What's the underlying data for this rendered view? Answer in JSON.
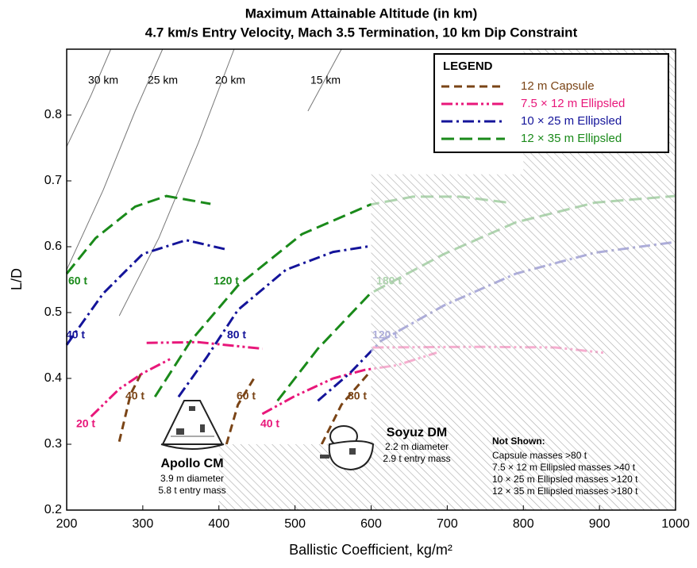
{
  "chart_data": {
    "type": "line",
    "title": "Maximum Attainable Altitude (in km)",
    "subtitle": "4.7 km/s Entry Velocity, Mach 3.5 Termination, 10 km Dip Constraint",
    "xlabel": "Ballistic Coefficient, kg/m²",
    "ylabel": "L/D",
    "xlim": [
      200,
      1000
    ],
    "ylim": [
      0.2,
      0.9
    ],
    "xticks": [
      200,
      300,
      400,
      500,
      600,
      700,
      800,
      900,
      1000
    ],
    "yticks": [
      0.2,
      0.3,
      0.4,
      0.5,
      0.6,
      0.7,
      0.8
    ],
    "legend_title": "LEGEND",
    "legend": "upper right",
    "series": [
      {
        "name": "12 m Capsule",
        "color": "#7a4416",
        "dash": "10 6",
        "curves": [
          {
            "label": "40 t",
            "x": [
              269,
              284,
              298
            ],
            "values": [
              0.304,
              0.376,
              0.408
            ]
          },
          {
            "label": "60 t",
            "x": [
              410,
              425,
              446
            ],
            "values": [
              0.3,
              0.36,
              0.4
            ]
          },
          {
            "label": "80 t",
            "x": [
              535,
              561,
              597
            ],
            "values": [
              0.3,
              0.36,
              0.408
            ]
          }
        ]
      },
      {
        "name": "7.5 × 12 m Ellipsled",
        "color": "#e8177a",
        "dash": "14 4 3 4 3 4",
        "curves": [
          {
            "label": "20 t",
            "x": [
              232,
              269,
              300,
              337
            ],
            "values": [
              0.342,
              0.384,
              0.408,
              0.43
            ]
          },
          {
            "label": null,
            "x": [
              305,
              373,
              457
            ],
            "values": [
              0.454,
              0.455,
              0.445
            ]
          },
          {
            "label": "40 t",
            "x": [
              457,
              498,
              550,
              592,
              634,
              686
            ],
            "values": [
              0.346,
              0.372,
              0.4,
              0.413,
              0.42,
              0.439
            ]
          },
          {
            "label": null,
            "x": [
              602,
              738,
              842,
              905
            ],
            "values": [
              0.447,
              0.448,
              0.447,
              0.439
            ]
          }
        ]
      },
      {
        "name": "10 × 25 m Ellipsled",
        "color": "#14149a",
        "dash": "14 5 3 5",
        "curves": [
          {
            "label": "40 t",
            "x": [
              200,
              248,
              300,
              357,
              409
            ],
            "values": [
              0.451,
              0.529,
              0.589,
              0.61,
              0.596
            ]
          },
          {
            "label": "80 t",
            "x": [
              347,
              384,
              425,
              488,
              550,
              599
            ],
            "values": [
              0.372,
              0.432,
              0.504,
              0.565,
              0.592,
              0.601
            ]
          },
          {
            "label": "120 t",
            "x": [
              530,
              572,
              613,
              696,
              790,
              894,
              999
            ],
            "values": [
              0.366,
              0.408,
              0.457,
              0.511,
              0.559,
              0.591,
              0.607
            ]
          }
        ]
      },
      {
        "name": "12 × 35 m Ellipsled",
        "color": "#1a8a1a",
        "dash": "16 7",
        "curves": [
          {
            "label": "60 t",
            "x": [
              200,
              238,
              290,
              331,
              389
            ],
            "values": [
              0.559,
              0.613,
              0.661,
              0.677,
              0.665
            ]
          },
          {
            "label": "120 t",
            "x": [
              316,
              363,
              425,
              509,
              599,
              655,
              717,
              780
            ],
            "values": [
              0.372,
              0.457,
              0.541,
              0.619,
              0.664,
              0.676,
              0.676,
              0.667
            ]
          },
          {
            "label": "180 t",
            "x": [
              477,
              530,
              599,
              696,
              790,
              894,
              999
            ],
            "values": [
              0.366,
              0.445,
              0.529,
              0.589,
              0.637,
              0.667,
              0.677
            ]
          }
        ]
      }
    ],
    "contours": [
      {
        "label": "30 km",
        "x": [
          200,
          232,
          258
        ],
        "values": [
          0.752,
          0.83,
          0.9
        ]
      },
      {
        "label": "25 km",
        "x": [
          200,
          248,
          290,
          326
        ],
        "values": [
          0.565,
          0.686,
          0.806,
          0.9
        ]
      },
      {
        "label": "20 km",
        "x": [
          269,
          321,
          373,
          420
        ],
        "values": [
          0.495,
          0.613,
          0.758,
          0.9
        ]
      },
      {
        "label": "15 km",
        "x": [
          517,
          561
        ],
        "values": [
          0.806,
          0.9
        ]
      }
    ],
    "shaded_region": {
      "x": [
        400,
        400,
        600,
        600,
        800,
        800,
        1000,
        1000
      ],
      "values": [
        0.2,
        0.3,
        0.3,
        0.71,
        0.71,
        0.9,
        0.9,
        0.2
      ]
    },
    "annotations": {
      "apollo": {
        "name": "Apollo CM",
        "lines": [
          "3.9 m diameter",
          "5.8 t entry mass"
        ]
      },
      "soyuz": {
        "name": "Soyuz DM",
        "lines": [
          "2.2 m diameter",
          "2.9 t entry mass"
        ]
      },
      "not_shown": {
        "title": "Not Shown:",
        "lines": [
          "Capsule masses >80 t",
          "7.5 × 12 m Ellipsled masses >40 t",
          "10 × 25 m Ellipsled masses >120 t",
          "12 × 35 m Ellipsled masses >180 t"
        ]
      }
    }
  }
}
